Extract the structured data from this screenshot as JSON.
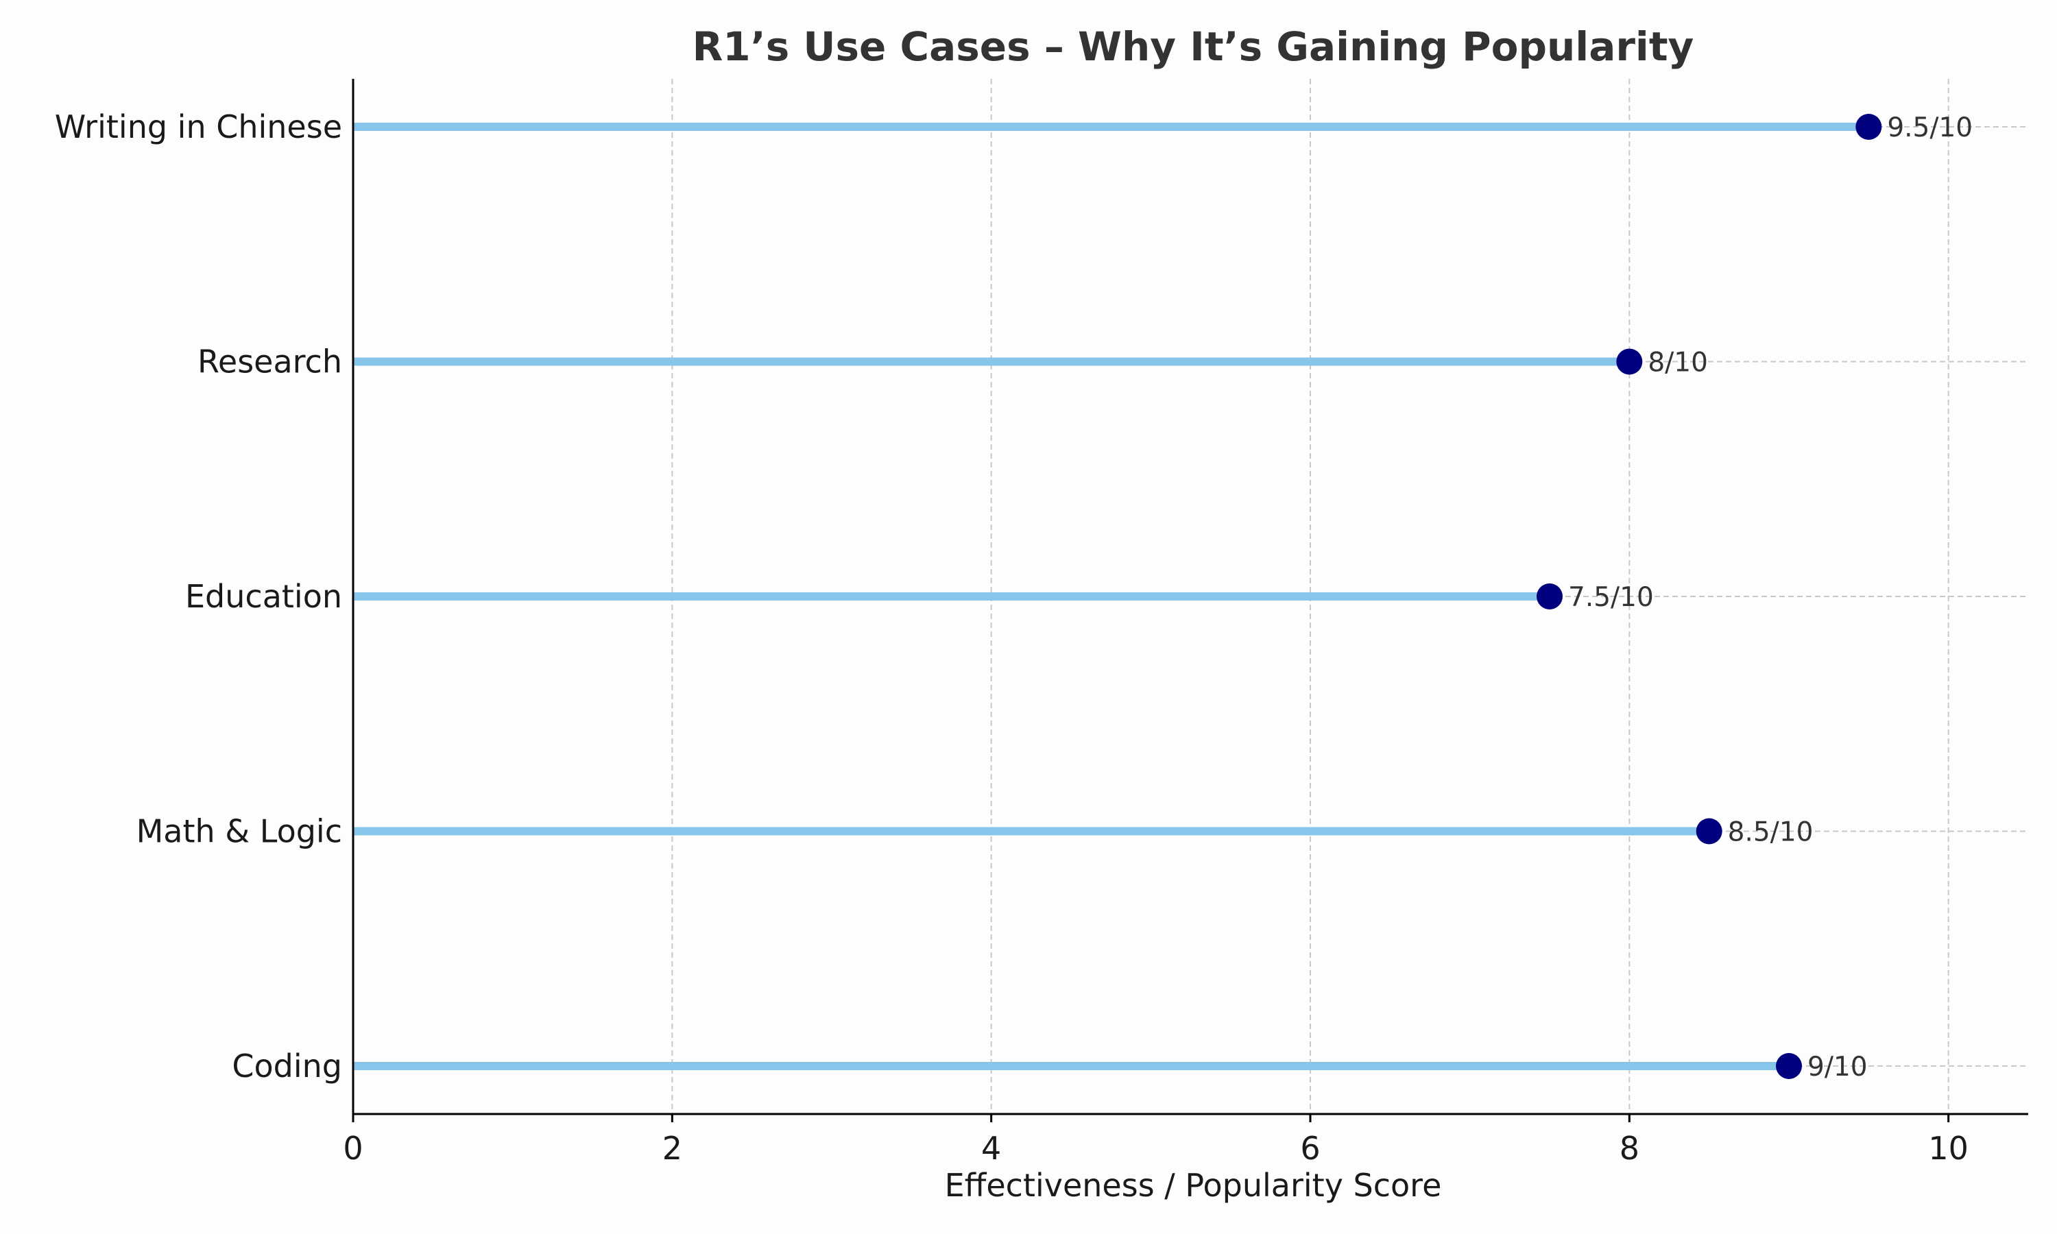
{
  "chart_data": {
    "type": "lollipop",
    "title": "R1’s Use Cases – Why It’s Gaining Popularity",
    "xlabel": "Effectiveness / Popularity Score",
    "ylabel": "",
    "xlim": [
      0,
      10.5
    ],
    "xticks": [
      0,
      2,
      4,
      6,
      8,
      10
    ],
    "grid": true,
    "categories": [
      "Coding",
      "Math & Logic",
      "Education",
      "Research",
      "Writing in Chinese"
    ],
    "values": [
      9,
      8.5,
      7.5,
      8,
      9.5
    ],
    "value_labels": [
      "9/10",
      "8.5/10",
      "7.5/10",
      "8/10",
      "9.5/10"
    ],
    "colors": {
      "stem": "#87c6ea",
      "marker": "#00007f",
      "grid": "#c8c8c8",
      "axis": "#000000",
      "background": "#fdfdfd"
    }
  }
}
